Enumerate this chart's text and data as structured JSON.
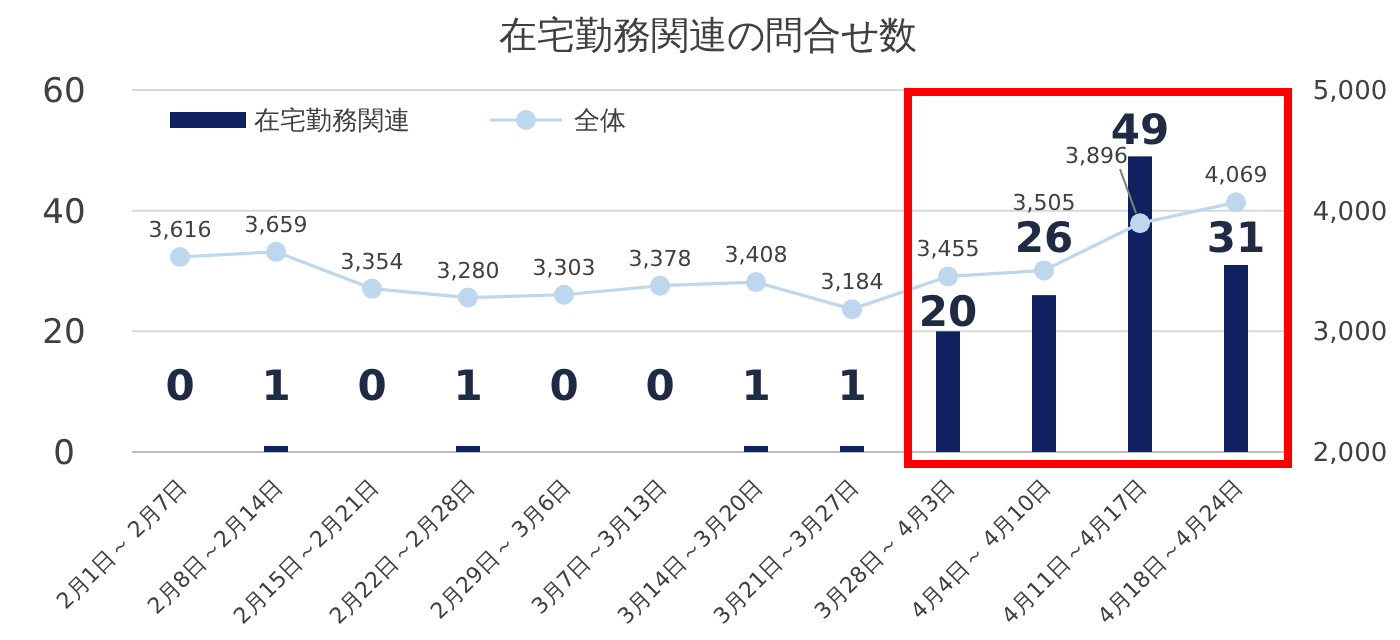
{
  "chart_data": {
    "type": "bar",
    "title": "在宅勤務関連の問合せ数",
    "categories": [
      "2月1日～ 2月7日",
      "2月8日～2月14日",
      "2月15日～2月21日",
      "2月22日～2月28日",
      "2月29日～ 3月6日",
      "3月7日～3月13日",
      "3月14日～3月20日",
      "3月21日～3月27日",
      "3月28日～ 4月3日",
      "4月4日～ 4月10日",
      "4月11日～4月17日",
      "4月18日～4月24日"
    ],
    "series": [
      {
        "name": "在宅勤務関連",
        "color": "#0f2160",
        "values": [
          0,
          1,
          0,
          1,
          0,
          0,
          1,
          1,
          20,
          26,
          49,
          31
        ]
      },
      {
        "name": "全体",
        "type": "line",
        "axis": "y2",
        "color": "#bdd7ee",
        "values": [
          3616,
          3659,
          3354,
          3280,
          3303,
          3378,
          3408,
          3184,
          3455,
          3505,
          3896,
          4069
        ],
        "value_labels": [
          "3,616",
          "3,659",
          "3,354",
          "3,280",
          "3,303",
          "3,378",
          "3,408",
          "3,184",
          "3,455",
          "3,505",
          "3,896",
          "4,069"
        ]
      }
    ],
    "ylim": [
      0,
      60
    ],
    "yticks": [
      0,
      20,
      40,
      60
    ],
    "y2lim": [
      2000,
      5000
    ],
    "y2ticks": [
      {
        "value": 2000,
        "label": "2,000"
      },
      {
        "value": 3000,
        "label": "3,000"
      },
      {
        "value": 4000,
        "label": "4,000"
      },
      {
        "value": 5000,
        "label": "5,000"
      }
    ],
    "grid": "y",
    "legend": "top left",
    "marker": "circle",
    "data_labels": true
  }
}
